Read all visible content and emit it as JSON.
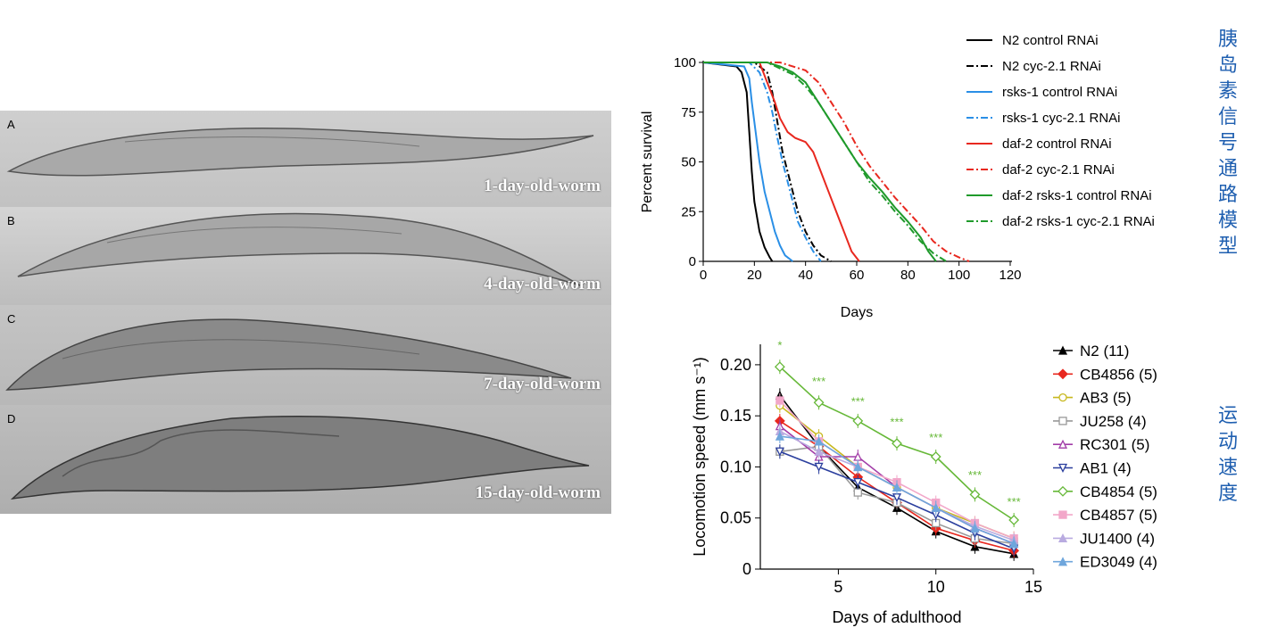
{
  "micrograph": {
    "panels": [
      {
        "letter": "A",
        "caption": "1-day-old-worm"
      },
      {
        "letter": "B",
        "caption": "4-day-old-worm"
      },
      {
        "letter": "C",
        "caption": "7-day-old-worm"
      },
      {
        "letter": "D",
        "caption": "15-day-old-worm"
      }
    ]
  },
  "side_labels": {
    "top": [
      "胰",
      "岛",
      "素",
      "信",
      "号",
      "通",
      "路",
      "模",
      "型"
    ],
    "bottom": [
      "运",
      "动",
      "速",
      "度"
    ]
  },
  "chart_data": [
    {
      "type": "line",
      "xlabel": "Days",
      "ylabel": "Percent survival",
      "xlim": [
        0,
        120
      ],
      "ylim": [
        0,
        100
      ],
      "xticks": [
        0,
        20,
        40,
        60,
        80,
        100,
        120
      ],
      "yticks": [
        0,
        25,
        50,
        75,
        100
      ],
      "legend_position": "right",
      "series": [
        {
          "name": "N2 control RNAi",
          "color": "#000000",
          "dash": "solid",
          "x": [
            0,
            13,
            15,
            17,
            18,
            19,
            20,
            22,
            24,
            26,
            27
          ],
          "y": [
            100,
            98,
            95,
            85,
            65,
            45,
            30,
            15,
            7,
            2,
            0
          ]
        },
        {
          "name": "N2 cyc-2.1 RNAi",
          "color": "#000000",
          "dash": "dashdot",
          "x": [
            0,
            20,
            25,
            27,
            29,
            31,
            33,
            35,
            37,
            40,
            43,
            46,
            50
          ],
          "y": [
            100,
            100,
            95,
            85,
            70,
            55,
            45,
            35,
            25,
            15,
            8,
            3,
            0
          ]
        },
        {
          "name": "rsks-1 control RNAi",
          "color": "#2a8fe6",
          "dash": "solid",
          "x": [
            0,
            16,
            18,
            19,
            20,
            21,
            22,
            24,
            26,
            28,
            30,
            32,
            35
          ],
          "y": [
            100,
            98,
            92,
            80,
            70,
            60,
            50,
            35,
            25,
            15,
            8,
            3,
            0
          ]
        },
        {
          "name": "rsks-1 cyc-2.1 RNAi",
          "color": "#2a8fe6",
          "dash": "dashdot",
          "x": [
            0,
            18,
            22,
            25,
            27,
            29,
            31,
            33,
            35,
            37,
            40,
            43,
            46
          ],
          "y": [
            100,
            100,
            95,
            85,
            75,
            62,
            50,
            40,
            30,
            20,
            12,
            5,
            0
          ]
        },
        {
          "name": "daf-2 control RNAi",
          "color": "#e8281f",
          "dash": "solid",
          "x": [
            0,
            22,
            25,
            28,
            30,
            33,
            36,
            40,
            43,
            46,
            49,
            52,
            55,
            58,
            61
          ],
          "y": [
            100,
            100,
            90,
            80,
            72,
            65,
            62,
            60,
            55,
            45,
            35,
            25,
            15,
            5,
            0
          ]
        },
        {
          "name": "daf-2 cyc-2.1 RNAi",
          "color": "#e8281f",
          "dash": "dashdot",
          "x": [
            0,
            30,
            35,
            40,
            45,
            50,
            55,
            60,
            65,
            70,
            75,
            80,
            85,
            90,
            95,
            100,
            104
          ],
          "y": [
            100,
            100,
            98,
            96,
            90,
            80,
            70,
            58,
            48,
            40,
            32,
            25,
            18,
            10,
            5,
            2,
            0
          ]
        },
        {
          "name": "daf-2 rsks-1 control RNAi",
          "color": "#1f9a2b",
          "dash": "solid",
          "x": [
            0,
            25,
            30,
            35,
            40,
            45,
            50,
            55,
            60,
            65,
            70,
            75,
            80,
            85,
            88,
            91
          ],
          "y": [
            100,
            100,
            98,
            95,
            90,
            80,
            70,
            60,
            50,
            42,
            35,
            27,
            20,
            12,
            5,
            0
          ]
        },
        {
          "name": "daf-2 rsks-1 cyc-2.1 RNAi",
          "color": "#1f9a2b",
          "dash": "dashdot",
          "x": [
            0,
            25,
            30,
            35,
            40,
            45,
            50,
            55,
            60,
            65,
            70,
            75,
            80,
            85,
            90,
            95
          ],
          "y": [
            100,
            100,
            97,
            94,
            88,
            80,
            70,
            60,
            50,
            40,
            33,
            25,
            18,
            10,
            4,
            0
          ]
        }
      ]
    },
    {
      "type": "line",
      "xlabel": "Days of adulthood",
      "ylabel": "Locomotion speed (mm s⁻¹)",
      "xlim": [
        1,
        15
      ],
      "ylim": [
        0,
        0.22
      ],
      "xticks": [
        5,
        10,
        15
      ],
      "yticks": [
        0,
        0.05,
        0.1,
        0.15,
        0.2
      ],
      "ytick_labels": [
        "0",
        "0.05",
        "0.10",
        "0.15",
        "0.20"
      ],
      "legend_position": "right",
      "series": [
        {
          "name": "N2 (11)",
          "color": "#000000",
          "marker": "triangle-up",
          "x": [
            2,
            4,
            6,
            8,
            10,
            12,
            14
          ],
          "y": [
            0.17,
            0.12,
            0.08,
            0.06,
            0.037,
            0.022,
            0.015
          ]
        },
        {
          "name": "CB4856 (5)",
          "color": "#e8281f",
          "marker": "diamond",
          "x": [
            2,
            4,
            6,
            8,
            10,
            12,
            14
          ],
          "y": [
            0.145,
            0.12,
            0.09,
            0.065,
            0.04,
            0.028,
            0.018
          ]
        },
        {
          "name": "AB3 (5)",
          "color": "#c7b81e",
          "marker": "circle-open",
          "x": [
            2,
            4,
            6,
            8,
            10,
            12,
            14
          ],
          "y": [
            0.16,
            0.13,
            0.1,
            0.08,
            0.06,
            0.045,
            0.03
          ]
        },
        {
          "name": "JU258 (4)",
          "color": "#999999",
          "marker": "square-open",
          "x": [
            2,
            4,
            6,
            8,
            10,
            12,
            14
          ],
          "y": [
            0.115,
            0.12,
            0.075,
            0.065,
            0.045,
            0.03,
            0.025
          ]
        },
        {
          "name": "RC301 (5)",
          "color": "#a23da8",
          "marker": "triangle-up-open",
          "x": [
            2,
            4,
            6,
            8,
            10,
            12,
            14
          ],
          "y": [
            0.14,
            0.11,
            0.11,
            0.08,
            0.06,
            0.04,
            0.025
          ]
        },
        {
          "name": "AB1 (4)",
          "color": "#2b3f9e",
          "marker": "triangle-down-open",
          "x": [
            2,
            4,
            6,
            8,
            10,
            12,
            14
          ],
          "y": [
            0.115,
            0.1,
            0.085,
            0.07,
            0.053,
            0.035,
            0.02
          ]
        },
        {
          "name": "CB4854 (5)",
          "color": "#66b838",
          "marker": "diamond-open",
          "x": [
            2,
            4,
            6,
            8,
            10,
            12,
            14
          ],
          "y": [
            0.198,
            0.163,
            0.145,
            0.123,
            0.11,
            0.073,
            0.048
          ]
        },
        {
          "name": "CB4857 (5)",
          "color": "#f2a7c9",
          "marker": "square",
          "x": [
            2,
            4,
            6,
            8,
            10,
            12,
            14
          ],
          "y": [
            0.165,
            0.125,
            0.1,
            0.085,
            0.065,
            0.045,
            0.03
          ]
        },
        {
          "name": "JU1400 (4)",
          "color": "#b9abe0",
          "marker": "triangle-up",
          "x": [
            2,
            4,
            6,
            8,
            10,
            12,
            14
          ],
          "y": [
            0.135,
            0.115,
            0.1,
            0.08,
            0.06,
            0.042,
            0.028
          ]
        },
        {
          "name": "ED3049 (4)",
          "color": "#6fa6dc",
          "marker": "triangle-up",
          "x": [
            2,
            4,
            6,
            8,
            10,
            12,
            14
          ],
          "y": [
            0.13,
            0.125,
            0.1,
            0.08,
            0.06,
            0.04,
            0.025
          ]
        }
      ],
      "annotations": [
        {
          "x": 2,
          "y": 0.215,
          "text": "*"
        },
        {
          "x": 4,
          "y": 0.18,
          "text": "***"
        },
        {
          "x": 6,
          "y": 0.16,
          "text": "***"
        },
        {
          "x": 8,
          "y": 0.14,
          "text": "***"
        },
        {
          "x": 10,
          "y": 0.125,
          "text": "***"
        },
        {
          "x": 12,
          "y": 0.088,
          "text": "***"
        },
        {
          "x": 14,
          "y": 0.062,
          "text": "***"
        }
      ]
    }
  ]
}
